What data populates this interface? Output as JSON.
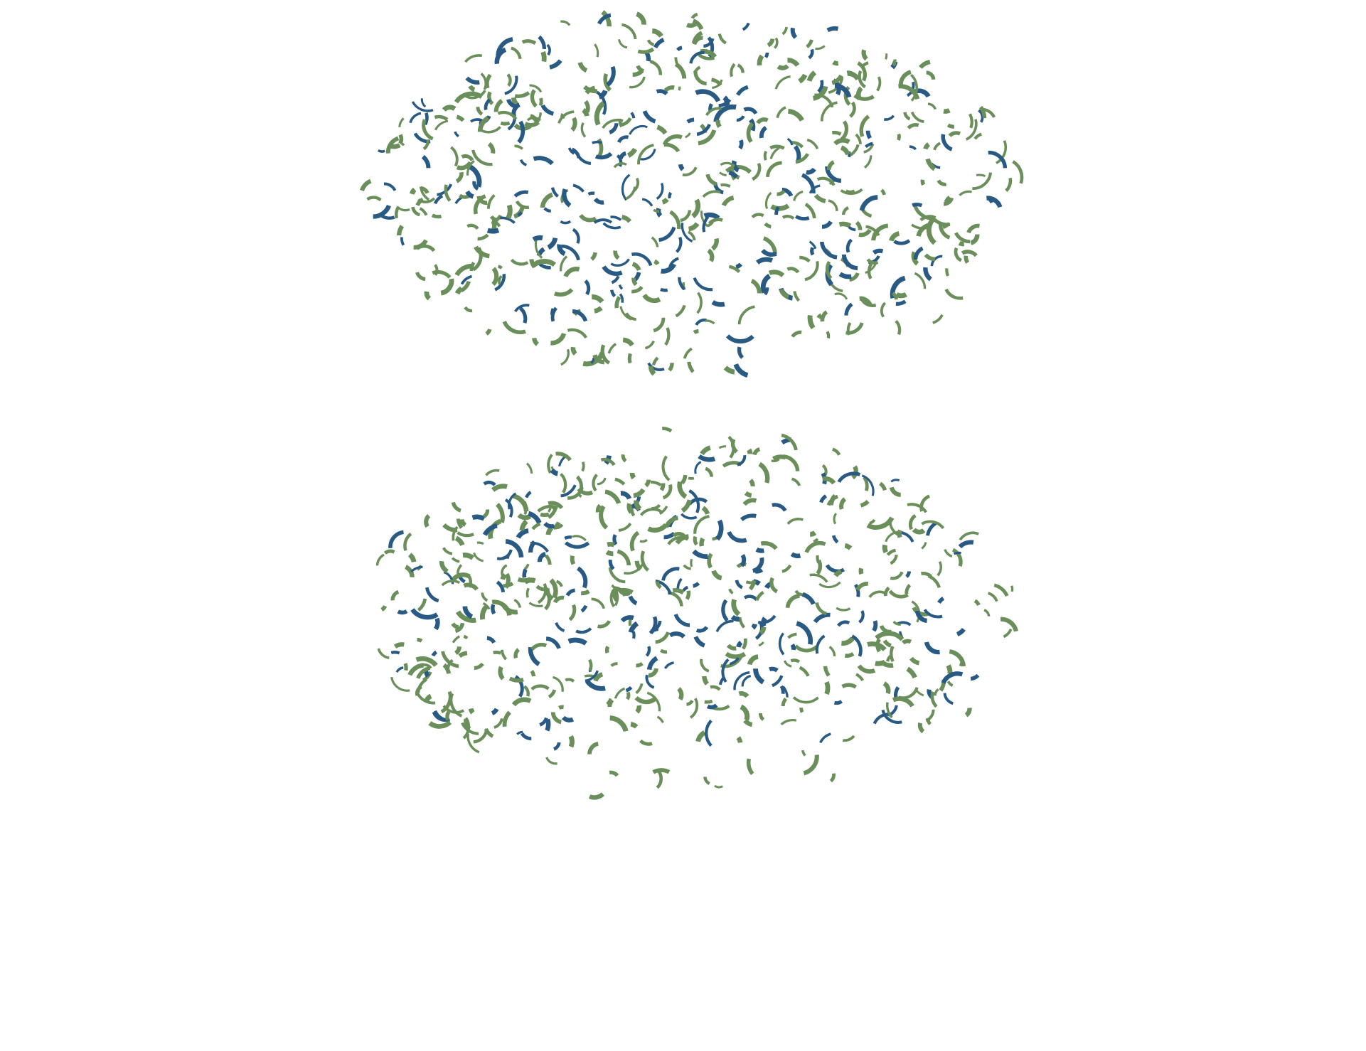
{
  "colors": {
    "background": "#ffffff",
    "green": "#6b8f5a",
    "blue": "#285a84"
  },
  "panels": [
    {
      "name": "pattern-panel-top"
    },
    {
      "name": "pattern-panel-bottom"
    }
  ]
}
